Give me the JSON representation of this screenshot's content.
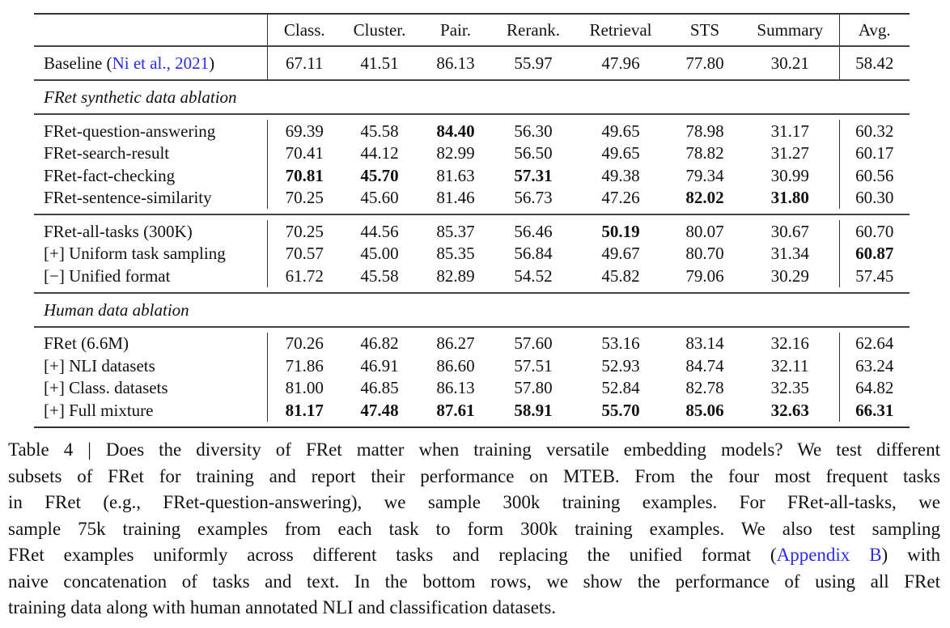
{
  "table": {
    "columns": [
      "Class.",
      "Cluster.",
      "Pair.",
      "Rerank.",
      "Retrieval",
      "STS",
      "Summary",
      "Avg."
    ],
    "baseline": {
      "label_prefix": "Baseline (",
      "citation_author": "Ni et al.",
      "citation_sep": ", ",
      "citation_year": "2021",
      "label_suffix": ")",
      "values": [
        "67.11",
        "41.51",
        "86.13",
        "55.97",
        "47.96",
        "77.80",
        "30.21",
        "58.42"
      ],
      "bold": [
        false,
        false,
        false,
        false,
        false,
        false,
        false,
        false
      ]
    },
    "sections": [
      {
        "title": "FRet synthetic data ablation",
        "groups": [
          [
            {
              "label": "FRet-question-answering",
              "values": [
                "69.39",
                "45.58",
                "84.40",
                "56.30",
                "49.65",
                "78.98",
                "31.17",
                "60.32"
              ],
              "bold": [
                false,
                false,
                true,
                false,
                false,
                false,
                false,
                false
              ]
            },
            {
              "label": "FRet-search-result",
              "values": [
                "70.41",
                "44.12",
                "82.99",
                "56.50",
                "49.65",
                "78.82",
                "31.27",
                "60.17"
              ],
              "bold": [
                false,
                false,
                false,
                false,
                false,
                false,
                false,
                false
              ]
            },
            {
              "label": "FRet-fact-checking",
              "values": [
                "70.81",
                "45.70",
                "81.63",
                "57.31",
                "49.38",
                "79.34",
                "30.99",
                "60.56"
              ],
              "bold": [
                true,
                true,
                false,
                true,
                false,
                false,
                false,
                false
              ]
            },
            {
              "label": "FRet-sentence-similarity",
              "values": [
                "70.25",
                "45.60",
                "81.46",
                "56.73",
                "47.26",
                "82.02",
                "31.80",
                "60.30"
              ],
              "bold": [
                false,
                false,
                false,
                false,
                false,
                true,
                true,
                false
              ]
            }
          ],
          [
            {
              "label": "FRet-all-tasks (300K)",
              "values": [
                "70.25",
                "44.56",
                "85.37",
                "56.46",
                "50.19",
                "80.07",
                "30.67",
                "60.70"
              ],
              "bold": [
                false,
                false,
                false,
                false,
                true,
                false,
                false,
                false
              ]
            },
            {
              "label": "[+] Uniform task sampling",
              "values": [
                "70.57",
                "45.00",
                "85.35",
                "56.84",
                "49.67",
                "80.70",
                "31.34",
                "60.87"
              ],
              "bold": [
                false,
                false,
                false,
                false,
                false,
                false,
                false,
                true
              ]
            },
            {
              "label": "[−] Unified format",
              "values": [
                "61.72",
                "45.58",
                "82.89",
                "54.52",
                "45.82",
                "79.06",
                "30.29",
                "57.45"
              ],
              "bold": [
                false,
                false,
                false,
                false,
                false,
                false,
                false,
                false
              ]
            }
          ]
        ]
      },
      {
        "title": "Human data ablation",
        "groups": [
          [
            {
              "label": "FRet (6.6M)",
              "values": [
                "70.26",
                "46.82",
                "86.27",
                "57.60",
                "53.16",
                "83.14",
                "32.16",
                "62.64"
              ],
              "bold": [
                false,
                false,
                false,
                false,
                false,
                false,
                false,
                false
              ]
            },
            {
              "label": "[+] NLI datasets",
              "values": [
                "71.86",
                "46.91",
                "86.60",
                "57.51",
                "52.93",
                "84.74",
                "32.11",
                "63.24"
              ],
              "bold": [
                false,
                false,
                false,
                false,
                false,
                false,
                false,
                false
              ]
            },
            {
              "label": "[+] Class. datasets",
              "values": [
                "81.00",
                "46.85",
                "86.13",
                "57.80",
                "52.84",
                "82.78",
                "32.35",
                "64.82"
              ],
              "bold": [
                false,
                false,
                false,
                false,
                false,
                false,
                false,
                false
              ]
            },
            {
              "label": "[+] Full mixture",
              "values": [
                "81.17",
                "47.48",
                "87.61",
                "58.91",
                "55.70",
                "85.06",
                "32.63",
                "66.31"
              ],
              "bold": [
                true,
                true,
                true,
                true,
                true,
                true,
                true,
                true
              ]
            }
          ]
        ]
      }
    ]
  },
  "caption": {
    "lines": [
      "Table 4 | Does the diversity of FRet matter when training versatile embedding models? We test different",
      "subsets of FRet for training and report their performance on MTEB. From the four most frequent tasks",
      "in FRet (e.g., FRet-question-answering), we sample 300k training examples. For FRet-all-tasks, we",
      "sample 75k training examples from each task to form 300k training examples. We also test sampling"
    ],
    "line5_before": "FRet examples uniformly across different tasks and replacing the unified format (",
    "line5_link": "Appendix B",
    "line5_after": ") with",
    "line6": "naive concatenation of tasks and text. In the bottom rows, we show the performance of using all FRet",
    "line7": "training data along with human annotated NLI and classification datasets."
  },
  "colors": {
    "link": "#2a2af0",
    "rule": "#333333"
  }
}
